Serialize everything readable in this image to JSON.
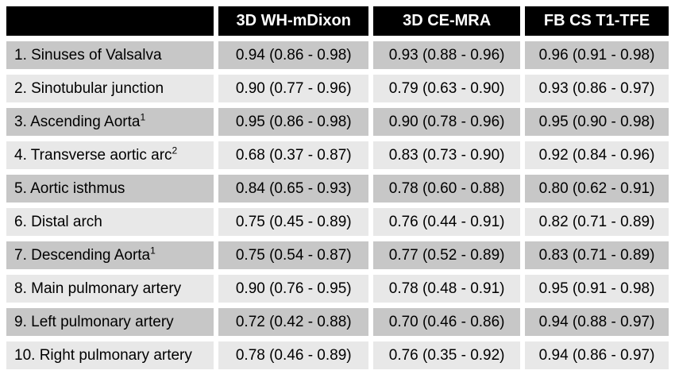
{
  "colors": {
    "header-bg": "#000000",
    "header-text": "#ffffff",
    "row-odd": "#c7c7c7",
    "row-even": "#e8e8e8",
    "grid": "#ffffff",
    "body-text": "#000000"
  },
  "chart_data": {
    "type": "table",
    "description": "Agreement values with 95% confidence intervals per anatomical region for three MRI sequences",
    "columns": [
      "",
      "3D WH-mDixon",
      "3D CE-MRA",
      "FB CS T1-TFE"
    ],
    "rows": [
      {
        "label": "1. Sinuses of Valsalva",
        "superscript": "",
        "values": [
          "0.94 (0.86 - 0.98)",
          "0.93 (0.88 - 0.96)",
          "0.96 (0.91 - 0.98)"
        ]
      },
      {
        "label": "2. Sinotubular junction",
        "superscript": "",
        "values": [
          "0.90 (0.77 - 0.96)",
          "0.79 (0.63 - 0.90)",
          "0.93 (0.86 - 0.97)"
        ]
      },
      {
        "label": "3. Ascending Aorta",
        "superscript": "1",
        "values": [
          "0.95 (0.86 - 0.98)",
          "0.90 (0.78 - 0.96)",
          "0.95 (0.90 - 0.98)"
        ]
      },
      {
        "label": "4. Transverse aortic arc",
        "superscript": "2",
        "values": [
          "0.68 (0.37 - 0.87)",
          "0.83 (0.73 - 0.90)",
          "0.92 (0.84 - 0.96)"
        ]
      },
      {
        "label": "5. Aortic isthmus",
        "superscript": "",
        "values": [
          "0.84 (0.65 - 0.93)",
          "0.78 (0.60 - 0.88)",
          "0.80 (0.62 - 0.91)"
        ]
      },
      {
        "label": "6. Distal arch",
        "superscript": "",
        "values": [
          "0.75 (0.45 - 0.89)",
          "0.76 (0.44 - 0.91)",
          "0.82 (0.71 - 0.89)"
        ]
      },
      {
        "label": "7. Descending Aorta",
        "superscript": "1",
        "values": [
          "0.75 (0.54 - 0.87)",
          "0.77 (0.52 - 0.89)",
          "0.83 (0.71 - 0.89)"
        ]
      },
      {
        "label": "8. Main pulmonary artery",
        "superscript": "",
        "values": [
          "0.90 (0.76 - 0.95)",
          "0.78 (0.48 - 0.91)",
          "0.95 (0.91 - 0.98)"
        ]
      },
      {
        "label": "9. Left pulmonary artery",
        "superscript": "",
        "values": [
          "0.72 (0.42 - 0.88)",
          "0.70 (0.46 - 0.86)",
          "0.94 (0.88 - 0.97)"
        ]
      },
      {
        "label": "10. Right pulmonary artery",
        "superscript": "",
        "values": [
          "0.78 (0.46 - 0.89)",
          "0.76 (0.35 - 0.92)",
          "0.94 (0.86 - 0.97)"
        ]
      }
    ]
  }
}
